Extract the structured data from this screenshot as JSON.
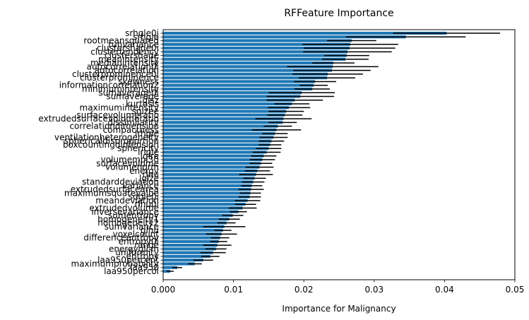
{
  "chart_data": {
    "type": "bar",
    "orientation": "horizontal",
    "title": "RFFeature Importance",
    "xlabel": "Importance for Malignancy",
    "ylabel": "",
    "xlim": [
      0,
      0.05
    ],
    "xticks": [
      "0.000",
      "0.01",
      "0.02",
      "0.03",
      "0.04",
      "0.05"
    ],
    "xtick_values": [
      0,
      0.01,
      0.02,
      0.03,
      0.04,
      0.05
    ],
    "grid": false,
    "bar_color": "#1f77b4",
    "error_color": "#000000",
    "bars": [
      {
        "label": "srhgle0i",
        "value": 0.0403,
        "err": 0.0076
      },
      {
        "label": "srhgle",
        "value": 0.0345,
        "err": 0.0085
      },
      {
        "label": "rootmeansquared",
        "value": 0.0268,
        "err": 0.0035
      },
      {
        "label": "runvariance",
        "value": 0.0266,
        "err": 0.0068
      },
      {
        "label": "clustershade0i",
        "value": 0.0265,
        "err": 0.0065
      },
      {
        "label": "clustertendency",
        "value": 0.0262,
        "err": 0.0063
      },
      {
        "label": "clustershade",
        "value": 0.0261,
        "err": 0.0032
      },
      {
        "label": "meanintensity",
        "value": 0.0259,
        "err": 0.0033
      },
      {
        "label": "medianintensity",
        "value": 0.0242,
        "err": 0.003
      },
      {
        "label": "autocorrelation0i",
        "value": 0.0241,
        "err": 0.0065
      },
      {
        "label": "autocorrelation",
        "value": 0.024,
        "err": 0.0055
      },
      {
        "label": "clusterprominence0i",
        "value": 0.0234,
        "err": 0.005
      },
      {
        "label": "clusterprominence",
        "value": 0.0233,
        "err": 0.004
      },
      {
        "label": "skewness",
        "value": 0.0216,
        "err": 0.003
      },
      {
        "label": "informationcorrelation2",
        "value": 0.0214,
        "err": 0.002
      },
      {
        "label": "minimumintensity",
        "value": 0.0212,
        "err": 0.0025
      },
      {
        "label": "sumaverage0i",
        "value": 0.0197,
        "err": 0.0047
      },
      {
        "label": "sumaverage",
        "value": 0.0195,
        "err": 0.0048
      },
      {
        "label": "glsz",
        "value": 0.0187,
        "err": 0.004
      },
      {
        "label": "kurtosis",
        "value": 0.0183,
        "err": 0.0025
      },
      {
        "label": "maximumintensity",
        "value": 0.0179,
        "err": 0.003
      },
      {
        "label": "sglzee",
        "value": 0.0175,
        "err": 0.0025
      },
      {
        "label": "surfacevolumeratio",
        "value": 0.0173,
        "err": 0.0025
      },
      {
        "label": "extrudedsurfacevolumeratio",
        "value": 0.0171,
        "err": 0.004
      },
      {
        "label": "dissimilarity",
        "value": 0.017,
        "err": 0.002
      },
      {
        "label": "correlationdimension",
        "value": 0.0163,
        "err": 0.002
      },
      {
        "label": "compactness",
        "value": 0.0161,
        "err": 0.0035
      },
      {
        "label": "lrhgle",
        "value": 0.0159,
        "err": 0.0018
      },
      {
        "label": "ventilationheterogeneity",
        "value": 0.0157,
        "err": 0.002
      },
      {
        "label": "sphericaldisproportion",
        "value": 0.0154,
        "err": 0.0018
      },
      {
        "label": "boxcountingdimension",
        "value": 0.0152,
        "err": 0.0016
      },
      {
        "label": "sphericity",
        "value": 0.015,
        "err": 0.0018
      },
      {
        "label": "lrlgle",
        "value": 0.0147,
        "err": 0.002
      },
      {
        "label": "lglre",
        "value": 0.0143,
        "err": 0.0018
      },
      {
        "label": "volumempl30",
        "value": 0.0141,
        "err": 0.0018
      },
      {
        "label": "surfacevolume",
        "value": 0.0139,
        "err": 0.0016
      },
      {
        "label": "volumenorm",
        "value": 0.0137,
        "err": 0.002
      },
      {
        "label": "energy",
        "value": 0.0134,
        "err": 0.0018
      },
      {
        "label": "rlnu",
        "value": 0.0132,
        "err": 0.0024
      },
      {
        "label": "lglze",
        "value": 0.013,
        "err": 0.0016
      },
      {
        "label": "standarddeviation",
        "value": 0.0128,
        "err": 0.0016
      },
      {
        "label": "variance",
        "value": 0.0126,
        "err": 0.0015
      },
      {
        "label": "extrudedsurfacearea",
        "value": 0.0125,
        "err": 0.0018
      },
      {
        "label": "maximumsquarevalue",
        "value": 0.0124,
        "err": 0.0015
      },
      {
        "label": "sdgle0i",
        "value": 0.0123,
        "err": 0.0016
      },
      {
        "label": "meandeviation",
        "value": 0.012,
        "err": 0.0018
      },
      {
        "label": "rlnu0i",
        "value": 0.0117,
        "err": 0.0015
      },
      {
        "label": "extrudedvolume",
        "value": 0.0113,
        "err": 0.002
      },
      {
        "label": "inversevariance",
        "value": 0.0107,
        "err": 0.0012
      },
      {
        "label": "sumentropy",
        "value": 0.0099,
        "err": 0.0015
      },
      {
        "label": "homogeneity1",
        "value": 0.0094,
        "err": 0.0015
      },
      {
        "label": "homogeneity2",
        "value": 0.009,
        "err": 0.0013
      },
      {
        "label": "sumvariance",
        "value": 0.0087,
        "err": 0.003
      },
      {
        "label": "glnu",
        "value": 0.0085,
        "err": 0.0012
      },
      {
        "label": "voxelcount",
        "value": 0.0083,
        "err": 0.0022
      },
      {
        "label": "differenceentropy",
        "value": 0.0081,
        "err": 0.0013
      },
      {
        "label": "entropy0i",
        "value": 0.0079,
        "err": 0.0012
      },
      {
        "label": "range",
        "value": 0.0077,
        "err": 0.002
      },
      {
        "label": "energyglcm",
        "value": 0.0075,
        "err": 0.0015
      },
      {
        "label": "uniformity",
        "value": 0.0071,
        "err": 0.0018
      },
      {
        "label": "entropy",
        "value": 0.0067,
        "err": 0.0013
      },
      {
        "label": "laa950percent",
        "value": 0.0057,
        "err": 0.0014
      },
      {
        "label": "maximumprobability",
        "value": 0.0045,
        "err": 0.001
      },
      {
        "label": "laa950",
        "value": 0.002,
        "err": 0.0007
      },
      {
        "label": "laa950percol",
        "value": 0.001,
        "err": 0.0005
      }
    ]
  }
}
